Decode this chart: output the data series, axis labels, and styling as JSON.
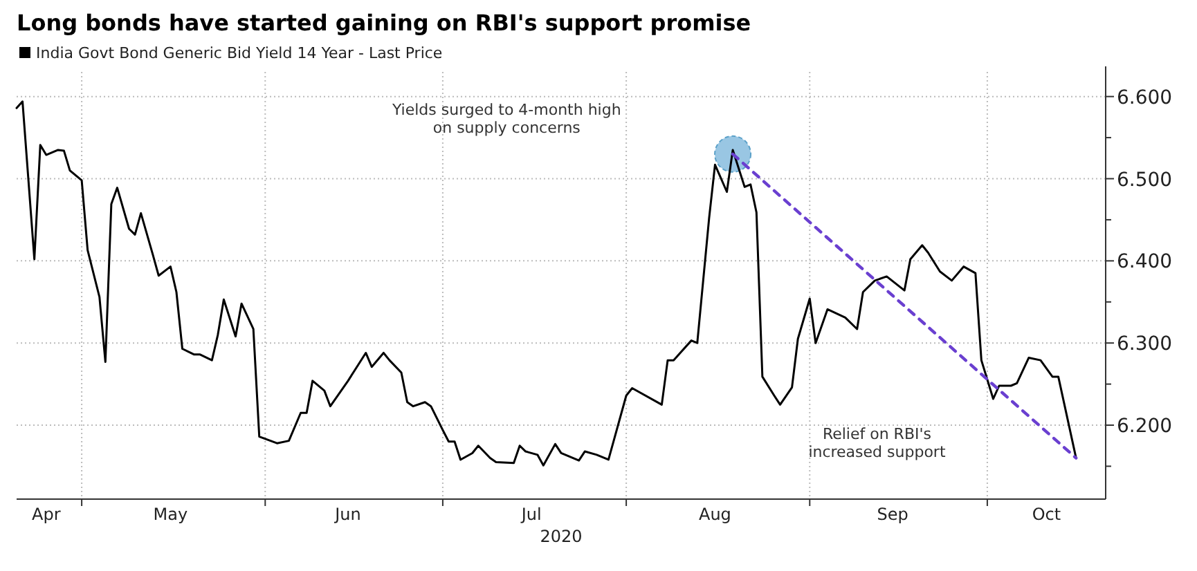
{
  "chart_data": {
    "type": "line",
    "title": "Long bonds have started gaining on RBI's support promise",
    "xlabel": "2020",
    "x": [
      "2020-04-20",
      "2020-04-21",
      "2020-04-23",
      "2020-04-24",
      "2020-04-25",
      "2020-04-27",
      "2020-04-28",
      "2020-04-29",
      "2020-05-01",
      "2020-05-02",
      "2020-05-04",
      "2020-05-05",
      "2020-05-06",
      "2020-05-07",
      "2020-05-09",
      "2020-05-10",
      "2020-05-11",
      "2020-05-13",
      "2020-05-14",
      "2020-05-16",
      "2020-05-17",
      "2020-05-18",
      "2020-05-20",
      "2020-05-21",
      "2020-05-23",
      "2020-05-24",
      "2020-05-25",
      "2020-05-27",
      "2020-05-28",
      "2020-05-30",
      "2020-05-31",
      "2020-06-03",
      "2020-06-05",
      "2020-06-07",
      "2020-06-08",
      "2020-06-09",
      "2020-06-11",
      "2020-06-12",
      "2020-06-15",
      "2020-06-18",
      "2020-06-19",
      "2020-06-21",
      "2020-06-22",
      "2020-06-24",
      "2020-06-25",
      "2020-06-26",
      "2020-06-28",
      "2020-06-29",
      "2020-07-01",
      "2020-07-02",
      "2020-07-03",
      "2020-07-04",
      "2020-07-06",
      "2020-07-07",
      "2020-07-09",
      "2020-07-10",
      "2020-07-13",
      "2020-07-14",
      "2020-07-15",
      "2020-07-17",
      "2020-07-18",
      "2020-07-20",
      "2020-07-21",
      "2020-07-24",
      "2020-07-25",
      "2020-07-27",
      "2020-07-29",
      "2020-08-01",
      "2020-08-02",
      "2020-08-07",
      "2020-08-08",
      "2020-08-09",
      "2020-08-12",
      "2020-08-13",
      "2020-08-15",
      "2020-08-16",
      "2020-08-18",
      "2020-08-19",
      "2020-08-21",
      "2020-08-22",
      "2020-08-23",
      "2020-08-24",
      "2020-08-26",
      "2020-08-27",
      "2020-08-29",
      "2020-08-30",
      "2020-09-01",
      "2020-09-02",
      "2020-09-04",
      "2020-09-07",
      "2020-09-09",
      "2020-09-10",
      "2020-09-12",
      "2020-09-14",
      "2020-09-17",
      "2020-09-18",
      "2020-09-20",
      "2020-09-21",
      "2020-09-23",
      "2020-09-25",
      "2020-09-27",
      "2020-09-29",
      "2020-09-30",
      "2020-10-02",
      "2020-10-03",
      "2020-10-05",
      "2020-10-06",
      "2020-10-08",
      "2020-10-10",
      "2020-10-12",
      "2020-10-13",
      "2020-10-16"
    ],
    "series": [
      {
        "name": "India Govt Bond Generic Bid Yield 14 Year - Last Price",
        "color": "#000000",
        "values": [
          6.586,
          6.594,
          6.402,
          6.541,
          6.529,
          6.535,
          6.534,
          6.51,
          6.498,
          6.413,
          6.356,
          6.277,
          6.469,
          6.489,
          6.439,
          6.432,
          6.458,
          6.408,
          6.382,
          6.393,
          6.362,
          6.293,
          6.286,
          6.286,
          6.279,
          6.31,
          6.353,
          6.308,
          6.348,
          6.317,
          6.186,
          6.178,
          6.181,
          6.215,
          6.215,
          6.254,
          6.242,
          6.223,
          6.254,
          6.288,
          6.271,
          6.288,
          6.279,
          6.264,
          6.228,
          6.223,
          6.228,
          6.223,
          6.194,
          6.18,
          6.18,
          6.158,
          6.166,
          6.175,
          6.16,
          6.155,
          6.154,
          6.175,
          6.168,
          6.164,
          6.151,
          6.177,
          6.166,
          6.157,
          6.168,
          6.164,
          6.158,
          6.236,
          6.245,
          6.225,
          6.279,
          6.279,
          6.303,
          6.3,
          6.452,
          6.517,
          6.484,
          6.535,
          6.49,
          6.493,
          6.459,
          6.259,
          6.236,
          6.225,
          6.246,
          6.305,
          6.354,
          6.3,
          6.341,
          6.331,
          6.317,
          6.362,
          6.376,
          6.381,
          6.364,
          6.402,
          6.419,
          6.41,
          6.387,
          6.376,
          6.393,
          6.385,
          6.279,
          6.232,
          6.248,
          6.248,
          6.251,
          6.282,
          6.279,
          6.259,
          6.259,
          6.16
        ]
      },
      {
        "type": "line",
        "color": "#6a3fd0",
        "line_style": "dashed",
        "x": [
          "2020-08-19",
          "2020-10-16"
        ],
        "values": [
          6.53,
          6.16
        ]
      }
    ],
    "annotations": [
      "Yields surged to 4-month high\non supply concerns",
      "Relief on RBI's\nincreased support"
    ],
    "xlim": [
      "2020-04-20",
      "2020-10-21"
    ],
    "xticks": [
      {
        "value": "2020-04-25",
        "label": "Apr"
      },
      {
        "value": "2020-05-01",
        "label": null
      },
      {
        "value": "2020-05-16",
        "label": "May"
      },
      {
        "value": "2020-06-01",
        "label": null
      },
      {
        "value": "2020-06-15",
        "label": "Jun"
      },
      {
        "value": "2020-07-01",
        "label": null
      },
      {
        "value": "2020-07-16",
        "label": "Jul"
      },
      {
        "value": "2020-08-01",
        "label": null
      },
      {
        "value": "2020-08-16",
        "label": "Aug"
      },
      {
        "value": "2020-09-01",
        "label": null
      },
      {
        "value": "2020-09-15",
        "label": "Sep"
      },
      {
        "value": "2020-10-01",
        "label": null
      },
      {
        "value": "2020-10-11",
        "label": "Oct"
      }
    ],
    "ylim": [
      6.11,
      6.63
    ],
    "yticks": [
      {
        "value": 6.15,
        "label": null
      },
      {
        "value": 6.2,
        "label": "6.200"
      },
      {
        "value": 6.25,
        "label": null
      },
      {
        "value": 6.3,
        "label": "6.300"
      },
      {
        "value": 6.35,
        "label": null
      },
      {
        "value": 6.4,
        "label": "6.400"
      },
      {
        "value": 6.45,
        "label": null
      },
      {
        "value": 6.5,
        "label": "6.500"
      },
      {
        "value": 6.55,
        "label": null
      },
      {
        "value": 6.6,
        "label": "6.600"
      }
    ],
    "grid": true,
    "legend": "top left"
  }
}
